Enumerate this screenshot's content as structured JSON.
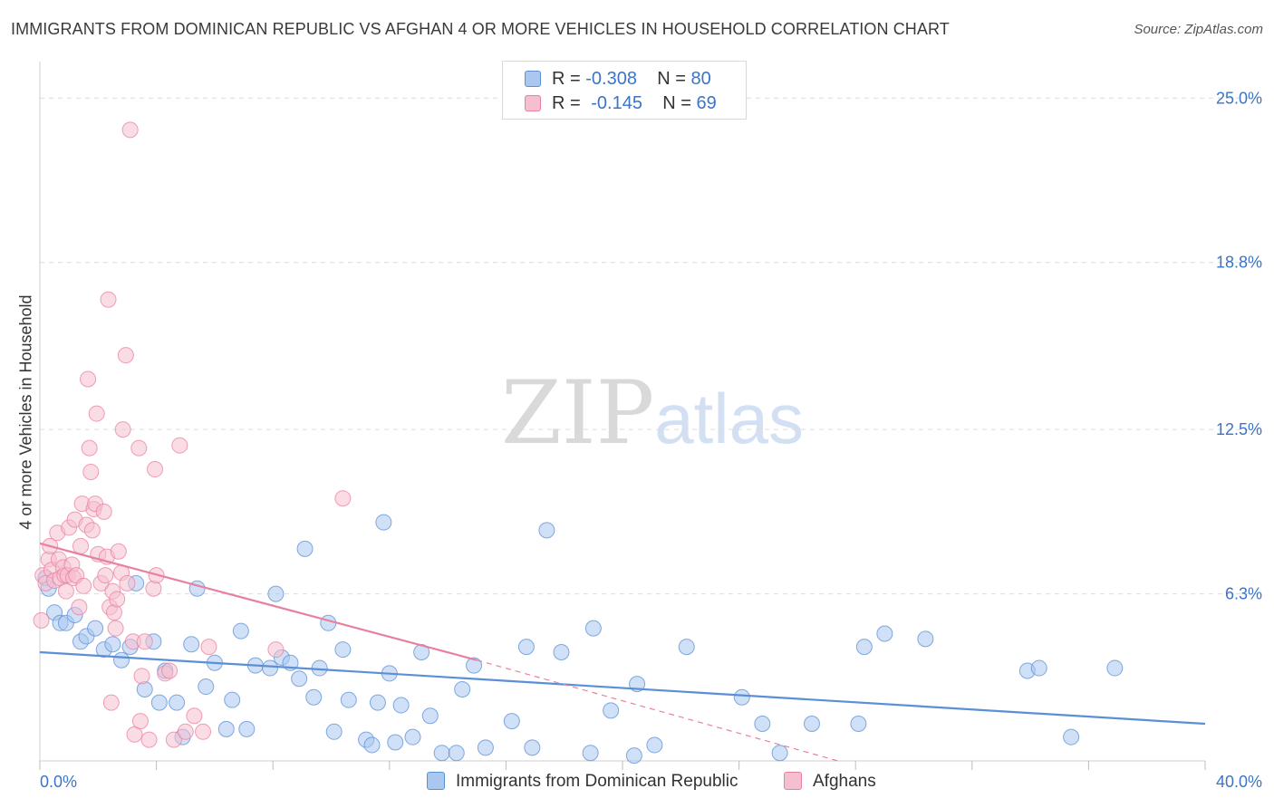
{
  "header": {
    "title": "IMMIGRANTS FROM DOMINICAN REPUBLIC VS AFGHAN 4 OR MORE VEHICLES IN HOUSEHOLD CORRELATION CHART",
    "source": "Source: ZipAtlas.com"
  },
  "watermark": {
    "zip": "ZIP",
    "atlas": "atlas"
  },
  "legend": {
    "rows": [
      {
        "r_label": "R =",
        "r_value": "-0.308",
        "n_label": "N =",
        "n_value": "80",
        "color": "#a9c7ef",
        "border": "#5b8fd6"
      },
      {
        "r_label": "R =",
        "r_value": "-0.145",
        "n_label": "N =",
        "n_value": "69",
        "color": "#f6bfd0",
        "border": "#e8809f"
      }
    ]
  },
  "chart_data": {
    "type": "scatter",
    "title": "IMMIGRANTS FROM DOMINICAN REPUBLIC VS AFGHAN 4 OR MORE VEHICLES IN HOUSEHOLD CORRELATION CHART",
    "xlabel": "",
    "ylabel": "4 or more Vehicles in Household",
    "xlim": [
      0,
      40
    ],
    "ylim": [
      0,
      26
    ],
    "x_tick_labels": [
      "0.0%",
      "40.0%"
    ],
    "y_ticks": [
      6.3,
      12.5,
      18.8,
      25.0
    ],
    "y_tick_labels": [
      "6.3%",
      "12.5%",
      "18.8%",
      "25.0%"
    ],
    "grid": true,
    "legend_position": "bottom",
    "series": [
      {
        "name": "Immigrants from Dominican Republic",
        "color": "#5b8fd6",
        "fill": "#a9c7ef",
        "trend": {
          "x": [
            0,
            40
          ],
          "y": [
            4.1,
            1.4
          ]
        },
        "points": [
          [
            0.2,
            6.9
          ],
          [
            0.3,
            6.5
          ],
          [
            0.5,
            5.6
          ],
          [
            0.7,
            5.2
          ],
          [
            0.9,
            5.2
          ],
          [
            1.2,
            5.5
          ],
          [
            1.4,
            4.5
          ],
          [
            1.6,
            4.7
          ],
          [
            1.9,
            5.0
          ],
          [
            2.2,
            4.2
          ],
          [
            2.5,
            4.4
          ],
          [
            2.8,
            3.8
          ],
          [
            3.1,
            4.3
          ],
          [
            3.3,
            6.7
          ],
          [
            3.6,
            2.7
          ],
          [
            3.9,
            4.5
          ],
          [
            4.1,
            2.2
          ],
          [
            4.3,
            3.4
          ],
          [
            4.7,
            2.2
          ],
          [
            4.9,
            0.9
          ],
          [
            5.2,
            4.4
          ],
          [
            5.4,
            6.5
          ],
          [
            5.7,
            2.8
          ],
          [
            6.0,
            3.7
          ],
          [
            6.4,
            1.2
          ],
          [
            6.6,
            2.3
          ],
          [
            6.9,
            4.9
          ],
          [
            7.1,
            1.2
          ],
          [
            7.4,
            3.6
          ],
          [
            7.9,
            3.5
          ],
          [
            8.1,
            6.3
          ],
          [
            8.3,
            3.9
          ],
          [
            8.6,
            3.7
          ],
          [
            8.9,
            3.1
          ],
          [
            9.1,
            8.0
          ],
          [
            9.4,
            2.4
          ],
          [
            9.6,
            3.5
          ],
          [
            9.9,
            5.2
          ],
          [
            10.1,
            1.1
          ],
          [
            10.4,
            4.2
          ],
          [
            10.6,
            2.3
          ],
          [
            11.2,
            0.8
          ],
          [
            11.4,
            0.6
          ],
          [
            11.6,
            2.2
          ],
          [
            11.8,
            9.0
          ],
          [
            12.0,
            3.3
          ],
          [
            12.2,
            0.7
          ],
          [
            12.4,
            2.1
          ],
          [
            12.8,
            0.9
          ],
          [
            13.1,
            4.1
          ],
          [
            13.4,
            1.7
          ],
          [
            13.8,
            0.3
          ],
          [
            14.3,
            0.3
          ],
          [
            14.5,
            2.7
          ],
          [
            14.9,
            3.6
          ],
          [
            15.3,
            0.5
          ],
          [
            16.2,
            1.5
          ],
          [
            16.7,
            4.3
          ],
          [
            16.9,
            0.5
          ],
          [
            17.4,
            8.7
          ],
          [
            17.9,
            4.1
          ],
          [
            18.9,
            0.3
          ],
          [
            19.0,
            5.0
          ],
          [
            19.6,
            1.9
          ],
          [
            20.4,
            0.2
          ],
          [
            20.5,
            2.9
          ],
          [
            21.1,
            0.6
          ],
          [
            22.2,
            4.3
          ],
          [
            24.1,
            2.4
          ],
          [
            24.8,
            1.4
          ],
          [
            25.4,
            0.3
          ],
          [
            26.5,
            1.4
          ],
          [
            28.1,
            1.4
          ],
          [
            28.3,
            4.3
          ],
          [
            29.0,
            4.8
          ],
          [
            30.4,
            4.6
          ],
          [
            33.9,
            3.4
          ],
          [
            34.3,
            3.5
          ],
          [
            35.4,
            0.9
          ],
          [
            36.9,
            3.5
          ]
        ]
      },
      {
        "name": "Afghans",
        "color": "#e8809f",
        "fill": "#f6bfd0",
        "trend": {
          "x": [
            0,
            15.0
          ],
          "y": [
            8.2,
            3.8
          ]
        },
        "trend_extension": {
          "x": [
            15.0,
            27.4
          ],
          "y": [
            3.8,
            0.0
          ]
        },
        "points": [
          [
            0.05,
            5.3
          ],
          [
            0.1,
            7.0
          ],
          [
            0.2,
            6.7
          ],
          [
            0.3,
            7.6
          ],
          [
            0.35,
            8.1
          ],
          [
            0.4,
            7.2
          ],
          [
            0.5,
            6.8
          ],
          [
            0.6,
            8.6
          ],
          [
            0.65,
            7.6
          ],
          [
            0.7,
            6.9
          ],
          [
            0.8,
            7.3
          ],
          [
            0.85,
            7.0
          ],
          [
            0.9,
            6.4
          ],
          [
            0.95,
            7.0
          ],
          [
            1.0,
            8.8
          ],
          [
            1.1,
            7.4
          ],
          [
            1.15,
            6.9
          ],
          [
            1.2,
            9.1
          ],
          [
            1.25,
            7.0
          ],
          [
            1.35,
            5.8
          ],
          [
            1.4,
            8.1
          ],
          [
            1.45,
            9.7
          ],
          [
            1.5,
            6.6
          ],
          [
            1.6,
            8.9
          ],
          [
            1.65,
            14.4
          ],
          [
            1.7,
            11.8
          ],
          [
            1.75,
            10.9
          ],
          [
            1.8,
            8.7
          ],
          [
            1.85,
            9.5
          ],
          [
            1.9,
            9.7
          ],
          [
            1.95,
            13.1
          ],
          [
            2.0,
            7.8
          ],
          [
            2.1,
            6.7
          ],
          [
            2.2,
            9.4
          ],
          [
            2.25,
            7.0
          ],
          [
            2.3,
            7.7
          ],
          [
            2.35,
            17.4
          ],
          [
            2.4,
            5.8
          ],
          [
            2.45,
            2.2
          ],
          [
            2.5,
            6.4
          ],
          [
            2.55,
            5.6
          ],
          [
            2.6,
            5.0
          ],
          [
            2.65,
            6.1
          ],
          [
            2.7,
            7.9
          ],
          [
            2.8,
            7.1
          ],
          [
            2.85,
            12.5
          ],
          [
            2.95,
            15.3
          ],
          [
            3.0,
            6.7
          ],
          [
            3.1,
            23.8
          ],
          [
            3.2,
            4.5
          ],
          [
            3.25,
            1.0
          ],
          [
            3.4,
            11.8
          ],
          [
            3.45,
            1.5
          ],
          [
            3.5,
            3.2
          ],
          [
            3.6,
            4.5
          ],
          [
            3.75,
            0.8
          ],
          [
            3.9,
            6.5
          ],
          [
            3.95,
            11.0
          ],
          [
            4.0,
            7.0
          ],
          [
            4.3,
            3.3
          ],
          [
            4.45,
            3.4
          ],
          [
            4.6,
            0.8
          ],
          [
            4.8,
            11.9
          ],
          [
            5.0,
            1.1
          ],
          [
            5.3,
            1.7
          ],
          [
            5.6,
            1.1
          ],
          [
            5.8,
            4.3
          ],
          [
            8.1,
            4.2
          ],
          [
            10.4,
            9.9
          ]
        ]
      }
    ]
  },
  "bottom_legend": {
    "items": [
      {
        "label": "Immigrants from Dominican Republic",
        "color": "#a9c7ef",
        "border": "#5b8fd6"
      },
      {
        "label": "Afghans",
        "color": "#f6bfd0",
        "border": "#e8809f"
      }
    ]
  }
}
